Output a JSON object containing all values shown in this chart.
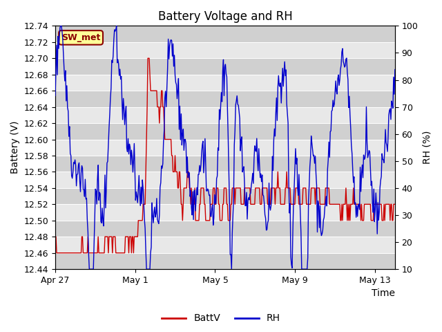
{
  "title": "Battery Voltage and RH",
  "xlabel": "Time",
  "ylabel_left": "Battery (V)",
  "ylabel_right": "RH (%)",
  "ylim_left": [
    12.44,
    12.74
  ],
  "ylim_right": [
    10,
    100
  ],
  "yticks_left": [
    12.44,
    12.46,
    12.48,
    12.5,
    12.52,
    12.54,
    12.56,
    12.58,
    12.6,
    12.62,
    12.64,
    12.66,
    12.68,
    12.7,
    12.72,
    12.74
  ],
  "yticks_right": [
    10,
    20,
    30,
    40,
    50,
    60,
    70,
    80,
    90,
    100
  ],
  "xtick_labels": [
    "Apr 27",
    "May 1",
    "May 5",
    "May 9",
    "May 13"
  ],
  "xtick_positions": [
    0,
    4,
    8,
    12,
    16
  ],
  "label_box_text": "SW_met",
  "label_box_bg": "#FFFF99",
  "label_box_edge": "#8B0000",
  "battv_color": "#CC0000",
  "rh_color": "#0000CC",
  "legend_battv": "BattV",
  "legend_rh": "RH",
  "bg_color": "#FFFFFF",
  "plot_bg_color": "#E8E8E8",
  "band_color": "#D0D0D0",
  "grid_color": "#FFFFFF",
  "title_fontsize": 12,
  "axis_fontsize": 10,
  "tick_fontsize": 9,
  "xlim": [
    0,
    17
  ],
  "figsize": [
    6.4,
    4.8
  ],
  "dpi": 100
}
